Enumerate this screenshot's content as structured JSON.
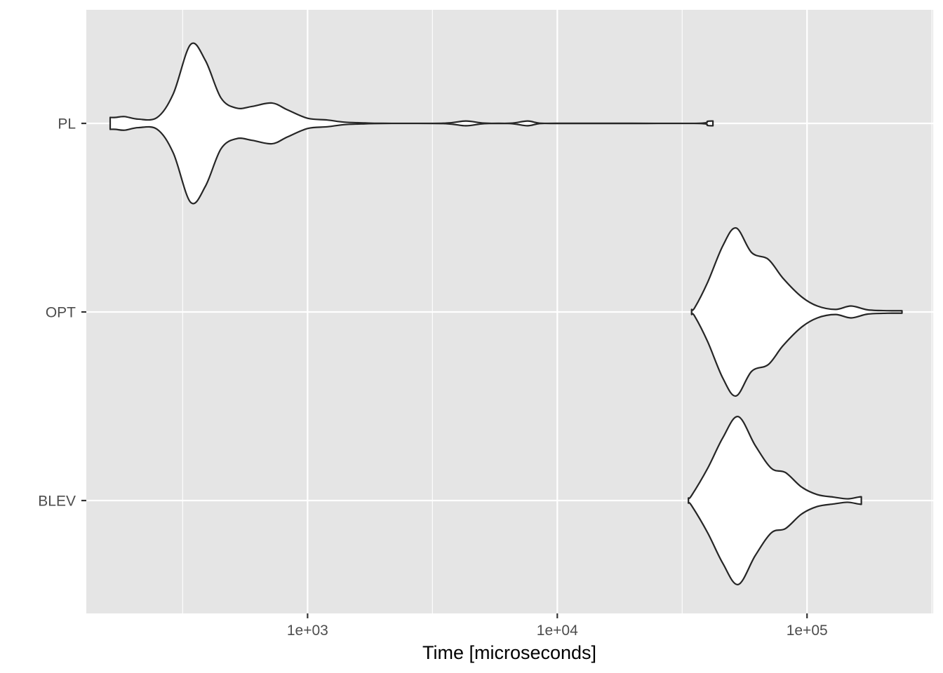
{
  "chart_data": {
    "type": "violin",
    "orientation": "horizontal",
    "title": "",
    "xlabel": "Time [microseconds]",
    "ylabel": "",
    "x_scale": "log10",
    "xlim": [
      130,
      320000
    ],
    "x_major_ticks": [
      1000,
      10000,
      100000
    ],
    "x_tick_labels": [
      "1e+03",
      "1e+04",
      "1e+05"
    ],
    "x_minor_gridlines": [
      316,
      3162,
      31623,
      316228
    ],
    "categories": [
      "PL",
      "OPT",
      "BLEV"
    ],
    "grid": true,
    "legend": "none",
    "colors": {
      "panel_background": "#e5e5e5",
      "grid_line": "#ffffff",
      "violin_fill": "#ffffff",
      "violin_outline": "#262626",
      "tick_text": "#4d4d4d",
      "axis_title": "#000000"
    },
    "series": [
      {
        "category": "PL",
        "min": 162,
        "max": 42000,
        "density_profile": [
          [
            162,
            0.07
          ],
          [
            170,
            0.07
          ],
          [
            185,
            0.08
          ],
          [
            210,
            0.05
          ],
          [
            250,
            0.07
          ],
          [
            290,
            0.35
          ],
          [
            340,
            0.93
          ],
          [
            390,
            0.74
          ],
          [
            450,
            0.3
          ],
          [
            520,
            0.18
          ],
          [
            600,
            0.2
          ],
          [
            720,
            0.24
          ],
          [
            830,
            0.16
          ],
          [
            1000,
            0.06
          ],
          [
            1200,
            0.04
          ],
          [
            1400,
            0.015
          ],
          [
            1700,
            0.005
          ],
          [
            2000,
            0.001
          ],
          [
            3500,
            0.002
          ],
          [
            4300,
            0.028
          ],
          [
            5100,
            0.003
          ],
          [
            6500,
            0.002
          ],
          [
            7600,
            0.028
          ],
          [
            8500,
            0.002
          ],
          [
            10000,
            0.001
          ],
          [
            20000,
            0.001
          ],
          [
            37000,
            0.001
          ],
          [
            40000,
            0.025
          ],
          [
            42000,
            0.028
          ]
        ]
      },
      {
        "category": "OPT",
        "min": 34500,
        "max": 240000,
        "density_profile": [
          [
            34500,
            0.03
          ],
          [
            35500,
            0.05
          ],
          [
            40000,
            0.35
          ],
          [
            46000,
            0.78
          ],
          [
            52000,
            0.99
          ],
          [
            60000,
            0.7
          ],
          [
            70000,
            0.62
          ],
          [
            80000,
            0.4
          ],
          [
            95000,
            0.18
          ],
          [
            110000,
            0.07
          ],
          [
            130000,
            0.03
          ],
          [
            150000,
            0.07
          ],
          [
            175000,
            0.025
          ],
          [
            210000,
            0.015
          ],
          [
            240000,
            0.015
          ]
        ]
      },
      {
        "category": "BLEV",
        "min": 33500,
        "max": 165000,
        "density_profile": [
          [
            33500,
            0.03
          ],
          [
            34500,
            0.06
          ],
          [
            40000,
            0.38
          ],
          [
            46000,
            0.74
          ],
          [
            53000,
            0.99
          ],
          [
            62000,
            0.65
          ],
          [
            72000,
            0.38
          ],
          [
            82000,
            0.33
          ],
          [
            95000,
            0.16
          ],
          [
            110000,
            0.07
          ],
          [
            128000,
            0.04
          ],
          [
            145000,
            0.02
          ],
          [
            160000,
            0.04
          ],
          [
            165000,
            0.045
          ]
        ]
      }
    ]
  }
}
